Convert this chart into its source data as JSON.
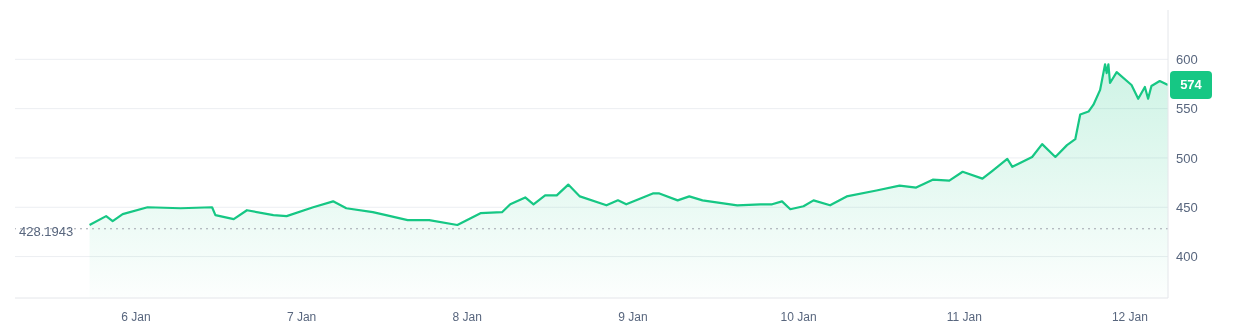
{
  "chart_data": {
    "type": "area",
    "xlim": [
      "--01-05T06:29",
      "--01-12T05:31"
    ],
    "ylim": [
      358,
      650
    ],
    "x": [
      "--01-05T17:17",
      "--01-05T19:41",
      "--01-05T20:38",
      "--01-05T22:05",
      "--01-06T01:41",
      "--01-06T06:29",
      "--01-06T11:02",
      "--01-06T11:31",
      "--01-06T14:10",
      "--01-06T16:05",
      "--01-06T19:55",
      "--01-06T21:50",
      "--01-07T01:41",
      "--01-07T04:34",
      "--01-07T06:29",
      "--01-07T10:19",
      "--01-07T12:14",
      "--01-07T15:22",
      "--01-07T18:29",
      "--01-07T22:34",
      "--01-08T01:55",
      "--01-08T05:02",
      "--01-08T06:14",
      "--01-08T08:24",
      "--01-08T09:36",
      "--01-08T11:17",
      "--01-08T12:58",
      "--01-08T14:38",
      "--01-08T16:19",
      "--01-08T20:10",
      "--01-08T21:50",
      "--01-08T23:02",
      "--01-09T02:53",
      "--01-09T03:50",
      "--01-09T06:29",
      "--01-09T08:10",
      "--01-09T10:05",
      "--01-09T15:07",
      "--01-09T18:29",
      "--01-09T20:10",
      "--01-09T21:36",
      "--01-09T22:48",
      "--01-10T00:43",
      "--01-10T02:10",
      "--01-10T04:34",
      "--01-10T06:58",
      "--01-10T11:17",
      "--01-10T14:38",
      "--01-10T17:02",
      "--01-10T19:26",
      "--01-10T21:50",
      "--01-10T23:46",
      "--01-11T02:38",
      "--01-11T04:05",
      "--01-11T06:14",
      "--01-11T06:58",
      "--01-11T09:50",
      "--01-11T11:17",
      "--01-11T13:12",
      "--01-11T14:53",
      "--01-11T16:05",
      "--01-11T16:48",
      "--01-11T18:00",
      "--01-11T18:43",
      "--01-11T19:41",
      "--01-11T20:24",
      "--01-11T20:38",
      "--01-11T20:53",
      "--01-11T21:07",
      "--01-11T22:05",
      "--01-12T00:14",
      "--01-12T01:12",
      "--01-12T02:10",
      "--01-12T02:38",
      "--01-12T03:07",
      "--01-12T04:19",
      "--01-12T05:31"
    ],
    "series": [
      {
        "color": "#16c784",
        "values": [
          432,
          441,
          436,
          443,
          450,
          449,
          450,
          442,
          438,
          447,
          442,
          441,
          450,
          456,
          449,
          445,
          442,
          437,
          437,
          432,
          444,
          445,
          453,
          460,
          453,
          462,
          462,
          473,
          461,
          452,
          457,
          453,
          464,
          464,
          457,
          461,
          457,
          452,
          453,
          453,
          456,
          448,
          451,
          457,
          452,
          461,
          467,
          472,
          470,
          478,
          477,
          486,
          479,
          487,
          499,
          491,
          501,
          514,
          501,
          513,
          519,
          544,
          547,
          554,
          569,
          595,
          586,
          595,
          576,
          587,
          574,
          560,
          572,
          560,
          573,
          578,
          574
        ]
      }
    ],
    "xticks": [
      {
        "value": "--01-06",
        "label": "6 Jan"
      },
      {
        "value": "--01-07",
        "label": "7 Jan"
      },
      {
        "value": "--01-08",
        "label": "8 Jan"
      },
      {
        "value": "--01-09",
        "label": "9 Jan"
      },
      {
        "value": "--01-10",
        "label": "10 Jan"
      },
      {
        "value": "--01-11",
        "label": "11 Jan"
      },
      {
        "value": "--01-12",
        "label": "12 Jan"
      }
    ],
    "yticks": [
      400,
      450,
      500,
      550,
      600
    ],
    "grid": "y",
    "ref_lines": [
      {
        "axis": "y",
        "value": 428.1943,
        "label": "428.1943",
        "color": "#a0a4ad",
        "line_style": "dotted"
      }
    ],
    "annotations": [
      {
        "text": "574",
        "x": "--01-12T05:31",
        "y": 574
      }
    ]
  }
}
